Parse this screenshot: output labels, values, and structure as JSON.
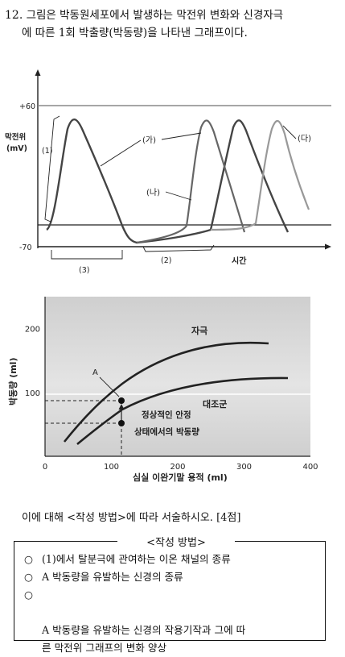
{
  "question": {
    "number": "12.",
    "line1": "그림은 박동원세포에서 발생하는 막전위 변화와 신경자극",
    "line2": "에 따른 1회 박출량(박동량)을 나타낸 그래프이다."
  },
  "chart_data": [
    {
      "type": "line",
      "ylabel": "막전위\n(mV)",
      "xlabel": "시간",
      "y_ticks": [
        "+60",
        "-70"
      ],
      "series": [
        {
          "name": "(가)",
          "color": "#444444"
        },
        {
          "name": "(나)",
          "color": "#666666"
        },
        {
          "name": "(다)",
          "color": "#999999"
        }
      ],
      "annotations": [
        "(1)",
        "(2)",
        "(3)"
      ],
      "grid": false
    },
    {
      "type": "line",
      "xlabel": "심실 이완기말 용적 (ml)",
      "ylabel": "박동량 (ml)",
      "x_ticks": [
        "0",
        "100",
        "200",
        "300",
        "400"
      ],
      "y_ticks": [
        "100",
        "200"
      ],
      "xlim": [
        0,
        400
      ],
      "ylim": [
        0,
        250
      ],
      "series": [
        {
          "name": "자극",
          "points": [
            [
              80,
              20
            ],
            [
              130,
              90
            ],
            [
              200,
              150
            ],
            [
              280,
              180
            ],
            [
              370,
              188
            ]
          ]
        },
        {
          "name": "대조군",
          "points": [
            [
              95,
              18
            ],
            [
              130,
              52
            ],
            [
              200,
              95
            ],
            [
              280,
              120
            ],
            [
              370,
              128
            ]
          ]
        }
      ],
      "annotations": [
        "A",
        "정상적인 안정\n상태에서의 박동량"
      ]
    }
  ],
  "prompt_line": "이에 대해 <작성 방법>에 따라 서술하시오. [4점]",
  "method": {
    "title": "<작성 방법>",
    "items": [
      "(1)에서 탈분극에 관여하는 이온 채널의 종류",
      "A 박동량을 유발하는 신경의 종류",
      "A 박동량을 유발하는 신경의 작용기작과 그에 따\n른 막전위 그래프의 변화 양상"
    ]
  }
}
